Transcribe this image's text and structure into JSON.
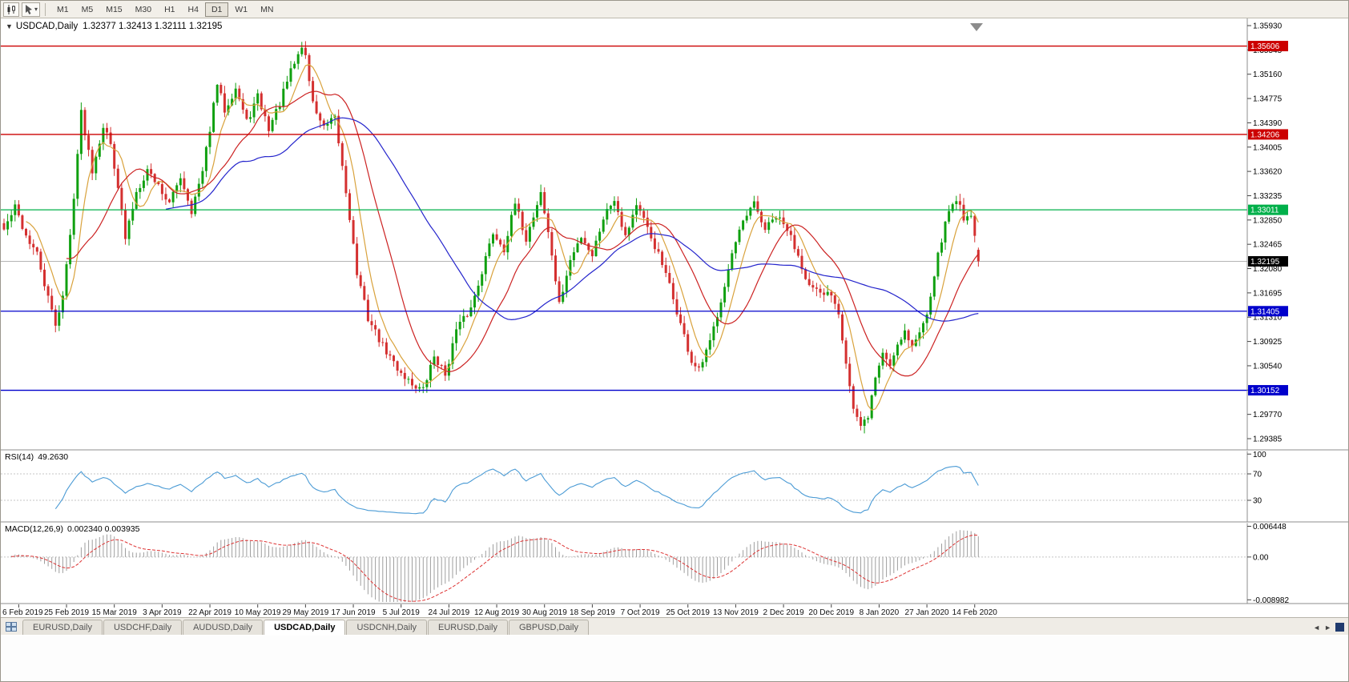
{
  "toolbar": {
    "timeframes": [
      "M1",
      "M5",
      "M15",
      "M30",
      "H1",
      "H4",
      "D1",
      "W1",
      "MN"
    ],
    "active_timeframe": "D1",
    "dropdown_caret": "▾"
  },
  "chart": {
    "collapse_icon": "▼",
    "symbol_label": "USDCAD,Daily",
    "ohlc_text": "1.32377 1.32413 1.32111 1.32195"
  },
  "indicators": {
    "rsi": {
      "label": "RSI(14)",
      "value": "49.2630"
    },
    "macd": {
      "label": "MACD(12,26,9)",
      "values": "0.002340 0.003935"
    }
  },
  "tabs": [
    {
      "label": "EURUSD,Daily",
      "active": false
    },
    {
      "label": "USDCHF,Daily",
      "active": false
    },
    {
      "label": "AUDUSD,Daily",
      "active": false
    },
    {
      "label": "USDCAD,Daily",
      "active": true
    },
    {
      "label": "USDCNH,Daily",
      "active": false
    },
    {
      "label": "EURUSD,Daily",
      "active": false
    },
    {
      "label": "GBPUSD,Daily",
      "active": false
    }
  ],
  "tab_bar": {
    "scroll_left": "◄",
    "scroll_right": "►"
  },
  "chart_data": {
    "type": "candlestick",
    "symbol": "USDCAD",
    "timeframe": "Daily",
    "open": 1.32377,
    "high": 1.32413,
    "low": 1.32111,
    "close": 1.32195,
    "current_price_label": "1.32195",
    "colors": {
      "up": "#10a010",
      "down": "#d43030",
      "ma_fast": "#d9a23c",
      "ma_mid": "#cc2222",
      "ma_slow": "#2424cc",
      "rsi": "#4b9bd5",
      "macd_hist": "#9e9e9e",
      "macd_signal": "#dd3333",
      "level_red": "#cc0000",
      "level_green": "#00b04a",
      "level_blue": "#0000cc",
      "current": "#000000"
    },
    "y_ticks": [
      "1.35930",
      "1.35545",
      "1.35160",
      "1.34775",
      "1.34390",
      "1.34005",
      "1.33620",
      "1.33235",
      "1.32850",
      "1.32465",
      "1.32080",
      "1.31695",
      "1.31310",
      "1.30925",
      "1.30540",
      "1.30155",
      "1.29770",
      "1.29385"
    ],
    "levels": [
      {
        "value": 1.35606,
        "label": "1.35606",
        "color": "#cc0000"
      },
      {
        "value": 1.34206,
        "label": "1.34206",
        "color": "#cc0000"
      },
      {
        "value": 1.33011,
        "label": "1.33011",
        "color": "#00b04a"
      },
      {
        "value": 1.31405,
        "label": "1.31405",
        "color": "#0000cc"
      },
      {
        "value": 1.30152,
        "label": "1.30152",
        "color": "#0000cc"
      }
    ],
    "x_labels": [
      {
        "bar": 4,
        "text": "6 Feb 2019"
      },
      {
        "bar": 17,
        "text": "25 Feb 2019"
      },
      {
        "bar": 30,
        "text": "15 Mar 2019"
      },
      {
        "bar": 43,
        "text": "3 Apr 2019"
      },
      {
        "bar": 56,
        "text": "22 Apr 2019"
      },
      {
        "bar": 69,
        "text": "10 May 2019"
      },
      {
        "bar": 82,
        "text": "29 May 2019"
      },
      {
        "bar": 95,
        "text": "17 Jun 2019"
      },
      {
        "bar": 108,
        "text": "5 Jul 2019"
      },
      {
        "bar": 121,
        "text": "24 Jul 2019"
      },
      {
        "bar": 134,
        "text": "12 Aug 2019"
      },
      {
        "bar": 147,
        "text": "30 Aug 2019"
      },
      {
        "bar": 160,
        "text": "18 Sep 2019"
      },
      {
        "bar": 173,
        "text": "7 Oct 2019"
      },
      {
        "bar": 186,
        "text": "25 Oct 2019"
      },
      {
        "bar": 199,
        "text": "13 Nov 2019"
      },
      {
        "bar": 212,
        "text": "2 Dec 2019"
      },
      {
        "bar": 225,
        "text": "20 Dec 2019"
      },
      {
        "bar": 238,
        "text": "8 Jan 2020"
      },
      {
        "bar": 251,
        "text": "27 Jan 2020"
      },
      {
        "bar": 264,
        "text": "14 Feb 2020"
      }
    ],
    "bars_total": 266,
    "noise_seed": 42,
    "close_anchors": [
      [
        0,
        1.327
      ],
      [
        3,
        1.3305
      ],
      [
        6,
        1.326
      ],
      [
        9,
        1.323
      ],
      [
        12,
        1.316
      ],
      [
        14,
        1.312
      ],
      [
        16,
        1.3165
      ],
      [
        18,
        1.326
      ],
      [
        21,
        1.3455
      ],
      [
        24,
        1.3365
      ],
      [
        27,
        1.3435
      ],
      [
        29,
        1.3405
      ],
      [
        31,
        1.334
      ],
      [
        33,
        1.3255
      ],
      [
        36,
        1.333
      ],
      [
        39,
        1.3365
      ],
      [
        42,
        1.334
      ],
      [
        45,
        1.331
      ],
      [
        48,
        1.3355
      ],
      [
        51,
        1.33
      ],
      [
        54,
        1.336
      ],
      [
        58,
        1.35
      ],
      [
        60,
        1.346
      ],
      [
        63,
        1.3495
      ],
      [
        66,
        1.344
      ],
      [
        69,
        1.348
      ],
      [
        72,
        1.343
      ],
      [
        75,
        1.347
      ],
      [
        78,
        1.352
      ],
      [
        81,
        1.356
      ],
      [
        82,
        1.3545
      ],
      [
        84,
        1.347
      ],
      [
        87,
        1.343
      ],
      [
        90,
        1.3445
      ],
      [
        92,
        1.337
      ],
      [
        94,
        1.329
      ],
      [
        96,
        1.32
      ],
      [
        99,
        1.313
      ],
      [
        103,
        1.3085
      ],
      [
        107,
        1.305
      ],
      [
        111,
        1.3025
      ],
      [
        114,
        1.3015
      ],
      [
        117,
        1.307
      ],
      [
        120,
        1.304
      ],
      [
        123,
        1.311
      ],
      [
        127,
        1.3145
      ],
      [
        130,
        1.3205
      ],
      [
        133,
        1.3265
      ],
      [
        136,
        1.324
      ],
      [
        139,
        1.331
      ],
      [
        142,
        1.3255
      ],
      [
        145,
        1.331
      ],
      [
        146,
        1.333
      ],
      [
        149,
        1.323
      ],
      [
        151,
        1.315
      ],
      [
        154,
        1.322
      ],
      [
        157,
        1.326
      ],
      [
        160,
        1.323
      ],
      [
        163,
        1.329
      ],
      [
        166,
        1.332
      ],
      [
        169,
        1.326
      ],
      [
        172,
        1.331
      ],
      [
        175,
        1.327
      ],
      [
        178,
        1.323
      ],
      [
        181,
        1.318
      ],
      [
        184,
        1.312
      ],
      [
        187,
        1.306
      ],
      [
        189,
        1.3045
      ],
      [
        192,
        1.309
      ],
      [
        195,
        1.316
      ],
      [
        198,
        1.323
      ],
      [
        201,
        1.328
      ],
      [
        204,
        1.331
      ],
      [
        207,
        1.327
      ],
      [
        210,
        1.329
      ],
      [
        213,
        1.327
      ],
      [
        216,
        1.323
      ],
      [
        219,
        1.318
      ],
      [
        222,
        1.3165
      ],
      [
        225,
        1.317
      ],
      [
        227,
        1.314
      ],
      [
        229,
        1.306
      ],
      [
        231,
        1.2985
      ],
      [
        233,
        1.2955
      ],
      [
        235,
        1.2975
      ],
      [
        237,
        1.3035
      ],
      [
        239,
        1.3075
      ],
      [
        241,
        1.3055
      ],
      [
        243,
        1.309
      ],
      [
        245,
        1.311
      ],
      [
        247,
        1.3085
      ],
      [
        249,
        1.3105
      ],
      [
        251,
        1.314
      ],
      [
        253,
        1.32
      ],
      [
        255,
        1.3255
      ],
      [
        257,
        1.33
      ],
      [
        259,
        1.332
      ],
      [
        261,
        1.329
      ],
      [
        263,
        1.3295
      ],
      [
        265,
        1.32195
      ]
    ],
    "moving_averages": [
      {
        "period": 7,
        "color": "#d9a23c"
      },
      {
        "period": 18,
        "color": "#cc2222"
      },
      {
        "period": 45,
        "color": "#2424cc"
      }
    ],
    "rsi": {
      "period": 14,
      "current": "49.2630",
      "scale_labels": [
        "100",
        "70",
        "30"
      ],
      "level_lines": [
        70,
        30
      ]
    },
    "macd": {
      "fast": 12,
      "slow": 26,
      "signal_period": 9,
      "macd_value": "0.002340",
      "signal_value": "0.003935",
      "scale_labels": [
        "0.006448",
        "0.00",
        "-0.008982"
      ]
    }
  }
}
